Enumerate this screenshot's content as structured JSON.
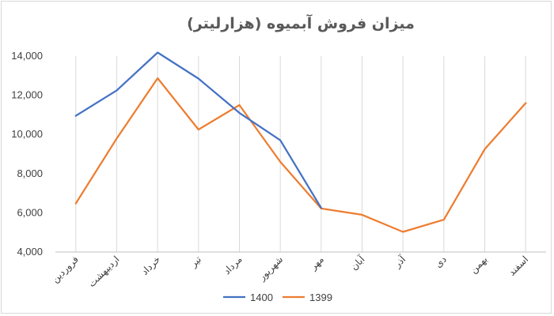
{
  "chart_data": {
    "type": "line",
    "title": "میزان فروش آبمیوه (هزارلیتر)",
    "categories": [
      "فروردین",
      "اردیبهشت",
      "خرداد",
      "تیر",
      "مرداد",
      "شهریور",
      "مهر",
      "آبان",
      "آذر",
      "دی",
      "بهمن",
      "اسفند"
    ],
    "series": [
      {
        "name": "1400",
        "color": "#4472c4",
        "values": [
          10950,
          12250,
          14180,
          12850,
          11100,
          9700,
          6250,
          null,
          null,
          null,
          null,
          null
        ]
      },
      {
        "name": "1399",
        "color": "#ed7d31",
        "values": [
          6480,
          9800,
          12870,
          10250,
          11500,
          8600,
          6220,
          5900,
          5030,
          5650,
          9250,
          11600
        ]
      }
    ],
    "ylim": [
      4000,
      14000
    ],
    "yticks": [
      4000,
      6000,
      8000,
      10000,
      12000,
      14000
    ],
    "ytick_labels": [
      "4,000",
      "6,000",
      "8,000",
      "10,000",
      "12,000",
      "14,000"
    ],
    "grid": "vertical",
    "legend": "bottom"
  }
}
